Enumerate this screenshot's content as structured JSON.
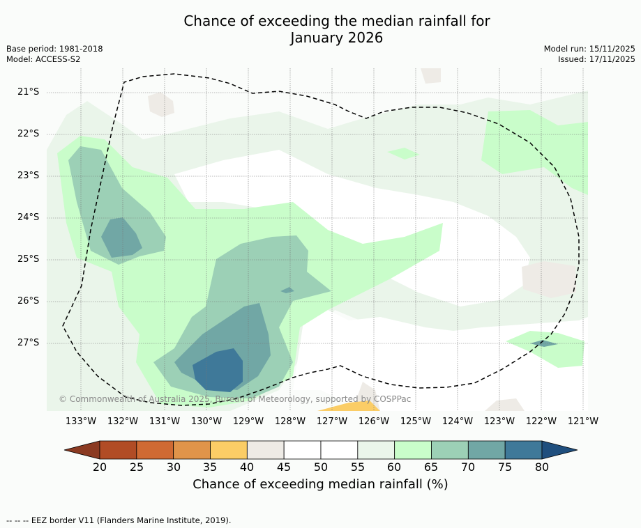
{
  "title": {
    "line1": "Chance of exceeding the median rainfall for",
    "line2": "January 2026"
  },
  "meta": {
    "base_period": "Base period: 1981-2018",
    "model": "Model: ACCESS-S2",
    "model_run": "Model run: 15/11/2025",
    "issued": "Issued: 17/11/2025"
  },
  "map": {
    "lat_labels": [
      "21°S",
      "22°S",
      "23°S",
      "24°S",
      "25°S",
      "26°S",
      "27°S"
    ],
    "lon_labels": [
      "133°W",
      "132°W",
      "131°W",
      "130°W",
      "129°W",
      "128°W",
      "127°W",
      "126°W",
      "125°W",
      "124°W",
      "123°W",
      "122°W",
      "121°W"
    ],
    "copyright": "© Commonwealth of Australia 2025, Bureau of Meteorology, supported by COSPPac"
  },
  "colorbar": {
    "ticks": [
      "20",
      "25",
      "30",
      "35",
      "40",
      "45",
      "50",
      "55",
      "60",
      "65",
      "70",
      "75",
      "80"
    ],
    "colors": [
      "#b14c25",
      "#cf6a33",
      "#e0944a",
      "#fbcd66",
      "#eeebe6",
      "#ffffff",
      "#ffffff",
      "#eaf5ea",
      "#c9fdca",
      "#9cd0b6",
      "#71a7a5",
      "#3f7999"
    ],
    "low_color": "#8b3a22",
    "high_color": "#1f4f7e",
    "label": "Chance of exceeding median rainfall (%)"
  },
  "footer": "--  --  -- EEZ border V11 (Flanders Marine Institute, 2019)."
}
